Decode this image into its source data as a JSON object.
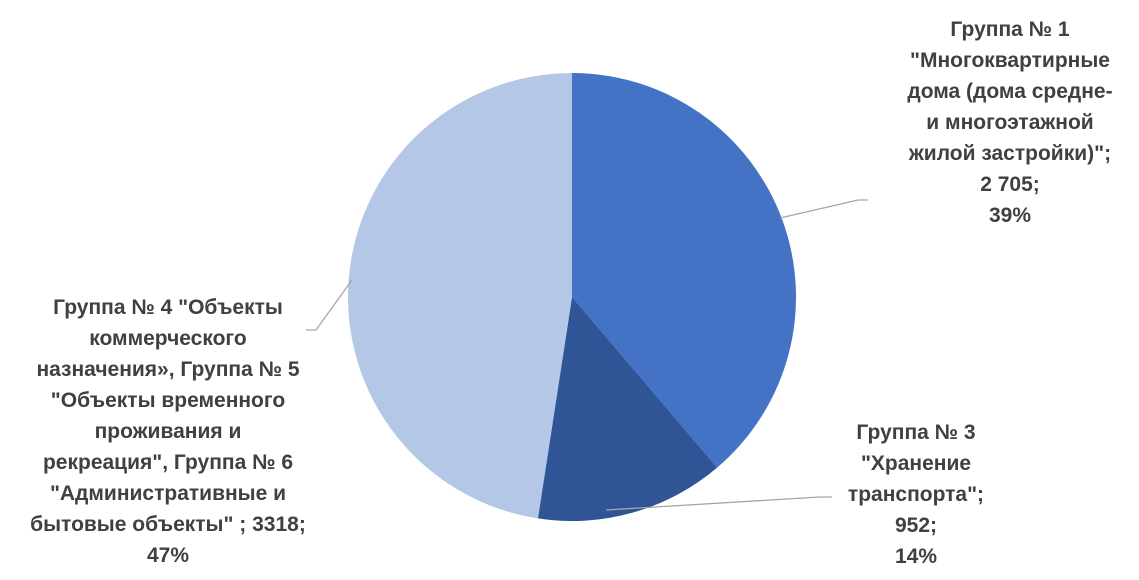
{
  "chart_data": {
    "type": "pie",
    "title": "",
    "slices": [
      {
        "label": "Группа № 1 \"Многоквартирные дома (дома средне- и многоэтажной жилой застройки)\"",
        "value": 2705,
        "value_text": "2 705",
        "percent": 39,
        "percent_text": "39%",
        "color": "#4472c4",
        "label_lines": [
          "Группа № 1",
          "\"Многоквартирные",
          "дома (дома средне-",
          "и многоэтажной",
          "жилой застройки)\";",
          "2 705;",
          "39%"
        ]
      },
      {
        "label": "Группа № 3 \"Хранение транспорта\"",
        "value": 952,
        "value_text": "952",
        "percent": 14,
        "percent_text": "14%",
        "color": "#2f5597",
        "label_lines": [
          "Группа № 3",
          "\"Хранение",
          "транспорта\";",
          "952;",
          "14%"
        ]
      },
      {
        "label": "Группа № 4 \"Объекты коммерческого назначения», Группа № 5 \"Объекты временного проживания и рекреация\", Группа № 6 \"Административные и бытовые объекты\"",
        "value": 3318,
        "value_text": "3318",
        "percent": 47,
        "percent_text": "47%",
        "color": "#b4c7e7",
        "label_lines": [
          "Группа № 4 \"Объекты",
          "коммерческого",
          "назначения», Группа № 5",
          "\"Объекты временного",
          "проживания и",
          "рекреация\", Группа № 6",
          "\"Административные и",
          "бытовые объекты\" ; 3318;",
          "47%"
        ]
      }
    ]
  }
}
